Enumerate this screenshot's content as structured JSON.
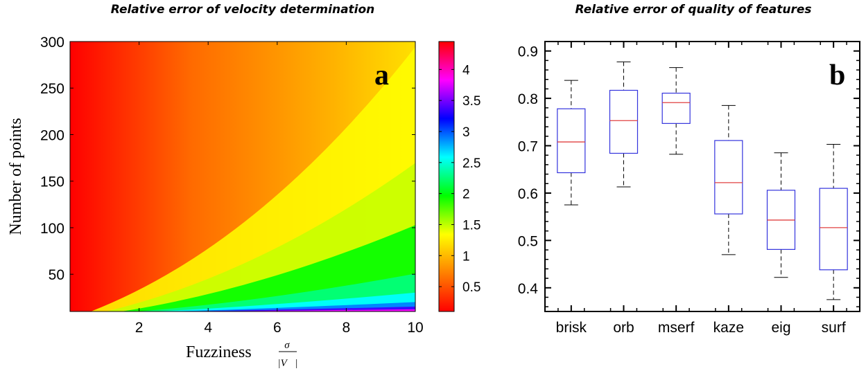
{
  "chart_data": [
    {
      "type": "heatmap",
      "title": "Relative error of velocity determination",
      "panel_label": "a",
      "xlabel": "Fuzziness",
      "xlabel_formula": {
        "numerator": "σ",
        "denominator": "|V⃗|"
      },
      "ylabel": "Number of points",
      "xlim": [
        0,
        10
      ],
      "ylim": [
        10,
        300
      ],
      "xticks": [
        2,
        4,
        6,
        8,
        10
      ],
      "yticks": [
        50,
        100,
        150,
        200,
        250,
        300
      ],
      "colorbar": {
        "min": 0.1,
        "max": 4.45,
        "ticks": [
          0.5,
          1,
          1.5,
          2,
          2.5,
          3,
          3.5,
          4
        ],
        "colormap": [
          "#ff0000",
          "#ff8000",
          "#ffff00",
          "#00ff00",
          "#00ffff",
          "#0000ff",
          "#ff00ff",
          "#ff0000"
        ]
      },
      "description_values": {
        "note": "error grows with fuzziness and decreases with number of points"
      }
    },
    {
      "type": "box",
      "title": "Relative error of quality of features",
      "panel_label": "b",
      "categories": [
        "brisk",
        "orb",
        "mserf",
        "kaze",
        "eig",
        "surf"
      ],
      "ylim": [
        0.35,
        0.92
      ],
      "yticks": [
        0.4,
        0.5,
        0.6,
        0.7,
        0.8,
        0.9
      ],
      "boxes": [
        {
          "name": "brisk",
          "whisker_low": 0.575,
          "q1": 0.643,
          "median": 0.708,
          "q3": 0.778,
          "whisker_high": 0.838
        },
        {
          "name": "orb",
          "whisker_low": 0.613,
          "q1": 0.684,
          "median": 0.753,
          "q3": 0.817,
          "whisker_high": 0.877
        },
        {
          "name": "mserf",
          "whisker_low": 0.682,
          "q1": 0.747,
          "median": 0.791,
          "q3": 0.811,
          "whisker_high": 0.865
        },
        {
          "name": "kaze",
          "whisker_low": 0.47,
          "q1": 0.556,
          "median": 0.622,
          "q3": 0.711,
          "whisker_high": 0.785
        },
        {
          "name": "eig",
          "whisker_low": 0.422,
          "q1": 0.481,
          "median": 0.543,
          "q3": 0.606,
          "whisker_high": 0.685
        },
        {
          "name": "surf",
          "whisker_low": 0.375,
          "q1": 0.438,
          "median": 0.527,
          "q3": 0.61,
          "whisker_high": 0.703
        }
      ],
      "colors": {
        "box": "#3333dd",
        "median": "#e04040",
        "whisker": "#000000"
      }
    }
  ]
}
